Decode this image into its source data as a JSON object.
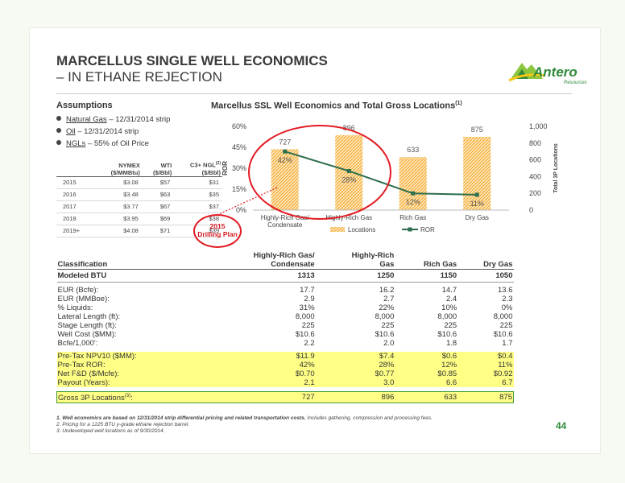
{
  "slide": {
    "title": "MARCELLUS SINGLE WELL ECONOMICS",
    "subtitle": "– IN ETHANE REJECTION",
    "page_number": "44",
    "logo": {
      "text": "Antero",
      "sub": "Resources",
      "color": "#2f8a3a"
    }
  },
  "assumptions": {
    "heading": "Assumptions",
    "bullets": [
      {
        "term": "Natural Gas",
        "rest": " – 12/31/2014 strip"
      },
      {
        "term": "Oil",
        "rest": " – 12/31/2014 strip"
      },
      {
        "term": "NGLs",
        "rest": " – 55% of Oil Price"
      }
    ]
  },
  "price_table": {
    "headers": [
      "",
      "NYMEX\n($/MMBtu)",
      "WTI\n($/Bbl)",
      "C3+ NGL(2)\n($/Bbl)"
    ],
    "rows": [
      [
        "2015",
        "$3.08",
        "$57",
        "$31"
      ],
      [
        "2016",
        "$3.48",
        "$63",
        "$35"
      ],
      [
        "2017",
        "$3.77",
        "$67",
        "$37"
      ],
      [
        "2018",
        "$3.95",
        "$69",
        "$38"
      ],
      [
        "2019+",
        "$4.08",
        "$71",
        "$39"
      ]
    ]
  },
  "chart_title": "Marcellus SSL Well Economics and Total Gross Locations",
  "chart_title_sup": "(1)",
  "drilling_plan_label": "2015\nDrilling Plan",
  "chart_data": {
    "type": "bar",
    "categories": [
      "Highly-Rich Gas/\nCondensate",
      "Highly-Rich Gas",
      "Rich Gas",
      "Dry Gas"
    ],
    "series": [
      {
        "name": "Locations",
        "type": "bar",
        "values": [
          727,
          896,
          633,
          875
        ],
        "axis": "right",
        "color": "#f5a623"
      },
      {
        "name": "ROR",
        "type": "line",
        "values": [
          42,
          28,
          12,
          11
        ],
        "axis": "left",
        "color": "#2d6e4e"
      }
    ],
    "bar_labels": [
      "727",
      "896",
      "633",
      "875"
    ],
    "line_labels": [
      "42%",
      "28%",
      "12%",
      "11%"
    ],
    "ylabel_left": "ROR",
    "ylabel_right": "Total 3P Locations",
    "ylim_left": [
      0,
      60
    ],
    "yticks_left": [
      "0%",
      "15%",
      "30%",
      "45%",
      "60%"
    ],
    "ylim_right": [
      0,
      1000
    ],
    "yticks_right": [
      "0",
      "200",
      "400",
      "600",
      "800",
      "1,000"
    ],
    "legend_position": "bottom",
    "highlight_color": "#e11b22"
  },
  "economics": {
    "header": [
      "Classification",
      "Highly-Rich Gas/\nCondensate",
      "Highly-Rich\nGas",
      "Rich Gas",
      "Dry Gas"
    ],
    "modeled": [
      "Modeled BTU",
      "1313",
      "1250",
      "1150",
      "1050"
    ],
    "rows": [
      [
        "EUR (Bcfe):",
        "17.7",
        "16.2",
        "14.7",
        "13.6"
      ],
      [
        "EUR (MMBoe):",
        "2.9",
        "2.7",
        "2.4",
        "2.3"
      ],
      [
        " % Liquids:",
        "31%",
        "22%",
        "10%",
        "0%"
      ],
      [
        "Lateral Length (ft):",
        "8,000",
        "8,000",
        "8,000",
        "8,000"
      ],
      [
        "Stage Length (ft):",
        "225",
        "225",
        "225",
        "225"
      ],
      [
        "Well Cost ($MM):",
        "$10.6",
        "$10.6",
        "$10.6",
        "$10.6"
      ],
      [
        "Bcfe/1,000':",
        "2.2",
        "2.0",
        "1.8",
        "1.7"
      ]
    ],
    "highlighted_rows": [
      [
        "Pre-Tax NPV10 ($MM):",
        "$11.9",
        "$7.4",
        "$0.6",
        "$0.4"
      ],
      [
        "Pre-Tax ROR:",
        "42%",
        "28%",
        "12%",
        "11%"
      ],
      [
        "Net F&D ($/Mcfe):",
        "$0.70",
        "$0.77",
        "$0.85",
        "$0.92"
      ],
      [
        "Payout (Years):",
        "2.1",
        "3.0",
        "6.6",
        "6.7"
      ]
    ],
    "gross_row": [
      "Gross 3P Locations",
      "727",
      "896",
      "633",
      "875"
    ],
    "gross_sup": "(3)",
    "gross_colon": ":"
  },
  "footnotes": {
    "note1_bold": "1.  Well economics are based on 12/31/2014 strip differential pricing and related transportation costs.",
    "note1_rest": " Includes gathering, compression and processing fees.",
    "note2": "2.  Pricing for a 1225 BTU y-grade ethane rejection barrel.",
    "note3": "3.  Undeveloped well locations as of 9/30/2014."
  }
}
